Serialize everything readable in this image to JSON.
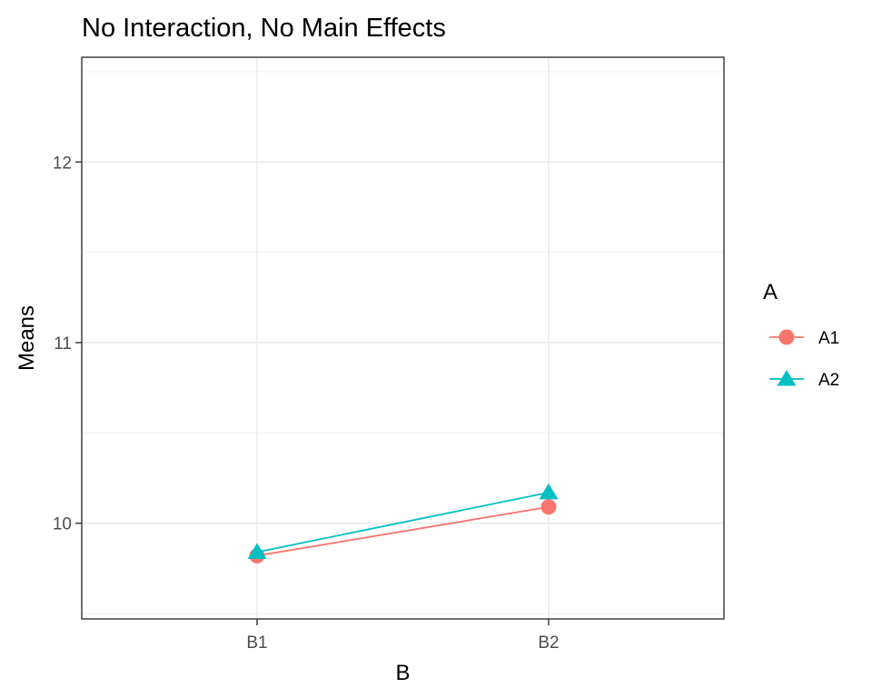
{
  "chart_data": {
    "type": "line",
    "title": "No Interaction, No Main Effects",
    "xlabel": "B",
    "ylabel": "Means",
    "categories": [
      "B1",
      "B2"
    ],
    "ylim": [
      9.47,
      12.58
    ],
    "yticks": [
      10,
      11,
      12
    ],
    "ytick_labels": [
      "10",
      "11",
      "12"
    ],
    "grid": true,
    "legend": {
      "title": "A",
      "position": "right"
    },
    "series": [
      {
        "name": "A1",
        "values": [
          9.82,
          10.09
        ],
        "color": "#F8766D",
        "marker": "circle"
      },
      {
        "name": "A2",
        "values": [
          9.84,
          10.17
        ],
        "color": "#00BFC4",
        "marker": "triangle"
      }
    ]
  }
}
